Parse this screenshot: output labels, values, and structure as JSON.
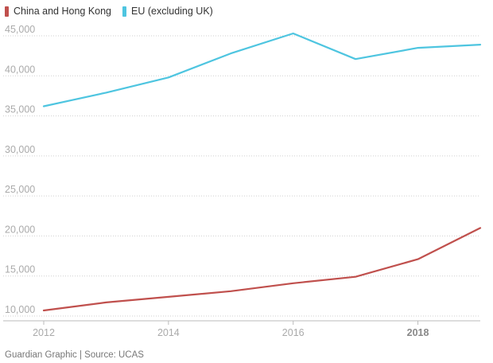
{
  "legend": {
    "items": [
      {
        "label": "China and Hong Kong",
        "color": "#c0504d"
      },
      {
        "label": "EU (excluding UK)",
        "color": "#4ec5e0"
      }
    ]
  },
  "source": "Guardian Graphic | Source: UCAS",
  "chart_data": {
    "type": "line",
    "title": "",
    "xlabel": "",
    "ylabel": "",
    "x": [
      2012,
      2013,
      2014,
      2015,
      2016,
      2017,
      2018,
      2019
    ],
    "xlim": [
      2012,
      2019
    ],
    "ylim": [
      10000,
      45000
    ],
    "x_ticks": [
      {
        "value": 2012,
        "label": "2012",
        "bold": false
      },
      {
        "value": 2014,
        "label": "2014",
        "bold": false
      },
      {
        "value": 2016,
        "label": "2016",
        "bold": false
      },
      {
        "value": 2018,
        "label": "2018",
        "bold": true
      }
    ],
    "y_ticks": [
      {
        "value": 10000,
        "label": "10,000"
      },
      {
        "value": 15000,
        "label": "15,000"
      },
      {
        "value": 20000,
        "label": "20,000"
      },
      {
        "value": 25000,
        "label": "25,000"
      },
      {
        "value": 30000,
        "label": "30,000"
      },
      {
        "value": 35000,
        "label": "35,000"
      },
      {
        "value": 40000,
        "label": "40,000"
      },
      {
        "value": 45000,
        "label": "45,000"
      }
    ],
    "grid": true,
    "series": [
      {
        "name": "China and Hong Kong",
        "color": "#c0504d",
        "values": [
          10700,
          11700,
          12400,
          13100,
          14100,
          14900,
          17100,
          21000
        ]
      },
      {
        "name": "EU (excluding UK)",
        "color": "#4ec5e0",
        "values": [
          36200,
          37900,
          39800,
          42800,
          45300,
          42100,
          43500,
          43900
        ]
      }
    ]
  }
}
